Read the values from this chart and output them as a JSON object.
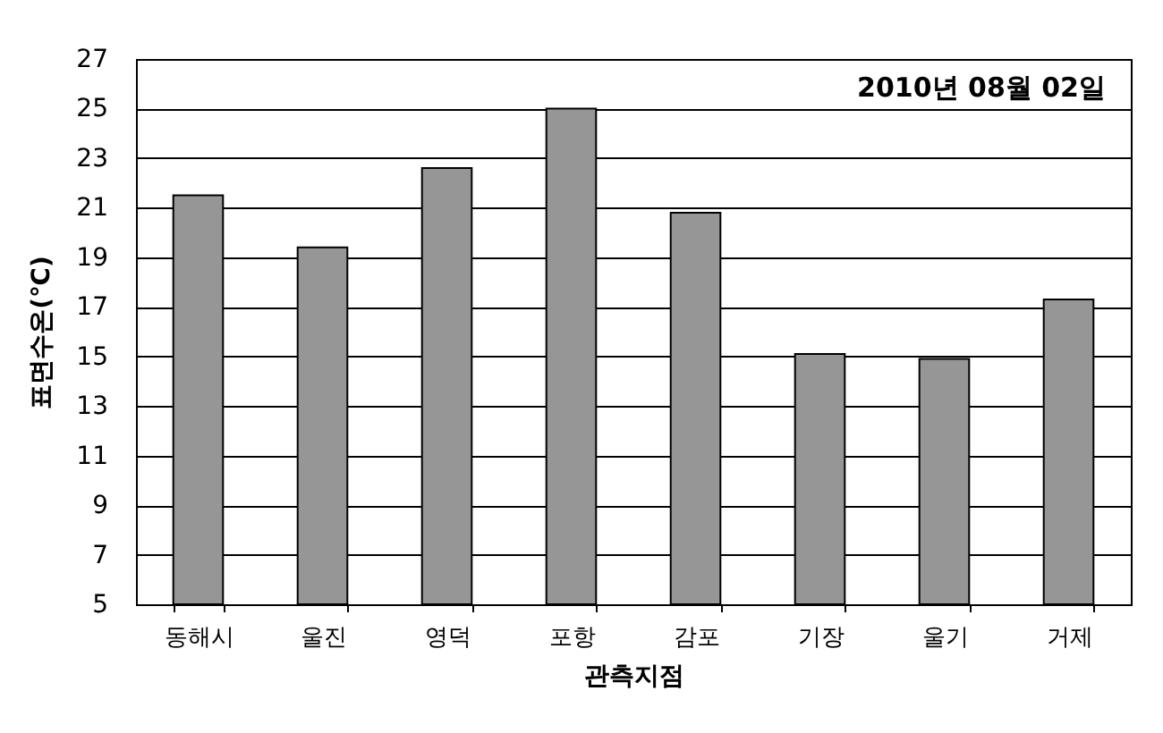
{
  "chart_data": {
    "type": "bar",
    "xlabel": "관측지점",
    "ylabel": "표면수온(℃)",
    "annotations": [
      "2010년 08월 02일"
    ],
    "categories": [
      "동해시",
      "울진",
      "영덕",
      "포항",
      "감포",
      "기장",
      "울기",
      "거제"
    ],
    "values": [
      21.5,
      19.4,
      22.6,
      25.0,
      20.8,
      15.1,
      14.9,
      17.3
    ],
    "color": "#969696",
    "ylim": [
      5,
      27
    ],
    "yticks": [
      5,
      7,
      9,
      11,
      13,
      15,
      17,
      19,
      21,
      23,
      25,
      27
    ],
    "grid": "y"
  }
}
